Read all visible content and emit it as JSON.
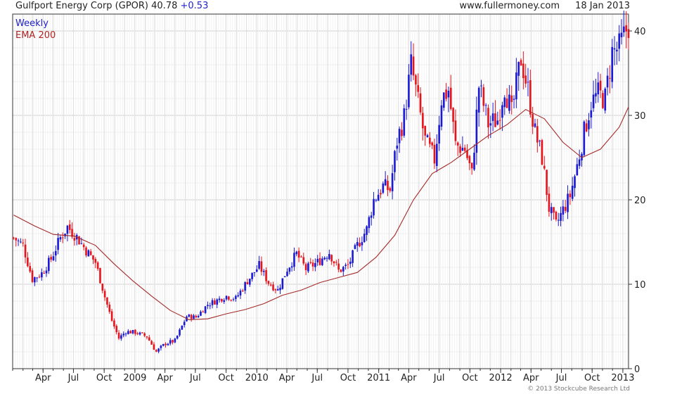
{
  "header": {
    "title": "Gulfport Energy Corp (GPOR) 40.78",
    "change": "+0.53",
    "site": "www.fullermoney.com",
    "date": "18 Jan 2013"
  },
  "legend": {
    "weekly": "Weekly",
    "ema": "EMA 200"
  },
  "copyright": "© 2013 Stockcube Research Ltd",
  "colors": {
    "up": "#1a1ad6",
    "down": "#e8141c",
    "ema": "#a52a2a",
    "grid": "#d9d9d9"
  },
  "chart_data": {
    "type": "candlestick",
    "ylim": [
      0,
      42
    ],
    "yticks": [
      0,
      10,
      20,
      30,
      40
    ],
    "grid": true,
    "x_start": "2008-01-01",
    "x_end": "2013-01-18",
    "xticks": [
      {
        "date": "2008-04-01",
        "label": "Apr"
      },
      {
        "date": "2008-07-01",
        "label": "Jul"
      },
      {
        "date": "2008-10-01",
        "label": "Oct"
      },
      {
        "date": "2009-01-01",
        "label": "2009"
      },
      {
        "date": "2009-04-01",
        "label": "Apr"
      },
      {
        "date": "2009-07-01",
        "label": "Jul"
      },
      {
        "date": "2009-10-01",
        "label": "Oct"
      },
      {
        "date": "2010-01-01",
        "label": "2010"
      },
      {
        "date": "2010-04-01",
        "label": "Apr"
      },
      {
        "date": "2010-07-01",
        "label": "Jul"
      },
      {
        "date": "2010-10-01",
        "label": "Oct"
      },
      {
        "date": "2011-01-01",
        "label": "2011"
      },
      {
        "date": "2011-04-01",
        "label": "Apr"
      },
      {
        "date": "2011-07-01",
        "label": "Jul"
      },
      {
        "date": "2011-10-01",
        "label": "Oct"
      },
      {
        "date": "2012-01-01",
        "label": "2012"
      },
      {
        "date": "2012-04-01",
        "label": "Apr"
      },
      {
        "date": "2012-07-01",
        "label": "Jul"
      },
      {
        "date": "2012-10-01",
        "label": "Oct"
      },
      {
        "date": "2013-01-01",
        "label": "2013"
      }
    ],
    "close_path": [
      [
        "2008-01-04",
        15.5
      ],
      [
        "2008-02-01",
        14.6
      ],
      [
        "2008-02-29",
        10.6
      ],
      [
        "2008-03-28",
        11.3
      ],
      [
        "2008-04-25",
        13.0
      ],
      [
        "2008-05-23",
        15.5
      ],
      [
        "2008-06-13",
        16.8
      ],
      [
        "2008-07-11",
        15.6
      ],
      [
        "2008-08-08",
        14.0
      ],
      [
        "2008-09-05",
        12.6
      ],
      [
        "2008-10-03",
        8.5
      ],
      [
        "2008-10-24",
        5.7
      ],
      [
        "2008-11-14",
        3.6
      ],
      [
        "2008-12-05",
        4.4
      ],
      [
        "2009-01-02",
        4.3
      ],
      [
        "2009-02-06",
        3.8
      ],
      [
        "2009-03-06",
        2.0
      ],
      [
        "2009-04-03",
        3.0
      ],
      [
        "2009-05-01",
        3.3
      ],
      [
        "2009-06-05",
        6.2
      ],
      [
        "2009-07-03",
        6.1
      ],
      [
        "2009-08-07",
        7.6
      ],
      [
        "2009-09-04",
        8.1
      ],
      [
        "2009-10-02",
        8.6
      ],
      [
        "2009-10-30",
        8.3
      ],
      [
        "2009-12-04",
        10.4
      ],
      [
        "2010-01-08",
        12.2
      ],
      [
        "2010-02-05",
        10.2
      ],
      [
        "2010-03-05",
        9.3
      ],
      [
        "2010-04-02",
        11.8
      ],
      [
        "2010-04-30",
        13.6
      ],
      [
        "2010-05-28",
        11.8
      ],
      [
        "2010-07-02",
        12.6
      ],
      [
        "2010-08-06",
        13.8
      ],
      [
        "2010-09-03",
        11.6
      ],
      [
        "2010-10-01",
        12.2
      ],
      [
        "2010-10-29",
        14.6
      ],
      [
        "2010-11-26",
        16.5
      ],
      [
        "2010-12-17",
        20.0
      ],
      [
        "2011-01-14",
        21.6
      ],
      [
        "2011-02-04",
        21.2
      ],
      [
        "2011-02-25",
        27.0
      ],
      [
        "2011-03-18",
        29.8
      ],
      [
        "2011-04-08",
        36.0
      ],
      [
        "2011-04-29",
        31.5
      ],
      [
        "2011-05-20",
        27.0
      ],
      [
        "2011-06-17",
        24.8
      ],
      [
        "2011-07-08",
        32.0
      ],
      [
        "2011-07-29",
        33.0
      ],
      [
        "2011-08-19",
        26.5
      ],
      [
        "2011-09-16",
        26.0
      ],
      [
        "2011-10-07",
        23.0
      ],
      [
        "2011-10-28",
        33.5
      ],
      [
        "2011-11-25",
        29.0
      ],
      [
        "2011-12-23",
        29.5
      ],
      [
        "2012-01-13",
        33.5
      ],
      [
        "2012-02-03",
        30.2
      ],
      [
        "2012-03-02",
        36.8
      ],
      [
        "2012-03-23",
        33.0
      ],
      [
        "2012-04-13",
        28.0
      ],
      [
        "2012-05-04",
        25.0
      ],
      [
        "2012-05-25",
        19.0
      ],
      [
        "2012-06-15",
        17.0
      ],
      [
        "2012-07-06",
        18.8
      ],
      [
        "2012-07-27",
        20.5
      ],
      [
        "2012-08-17",
        24.0
      ],
      [
        "2012-09-07",
        28.0
      ],
      [
        "2012-09-28",
        31.5
      ],
      [
        "2012-10-19",
        32.5
      ],
      [
        "2012-11-09",
        32.0
      ],
      [
        "2012-11-30",
        37.5
      ],
      [
        "2012-12-21",
        38.0
      ],
      [
        "2013-01-18",
        40.8
      ]
    ],
    "series": [
      {
        "name": "EMA 200",
        "type": "line",
        "points": [
          [
            "2008-01-04",
            18.2
          ],
          [
            "2008-03-07",
            16.9
          ],
          [
            "2008-05-02",
            15.9
          ],
          [
            "2008-07-04",
            15.7
          ],
          [
            "2008-09-05",
            14.6
          ],
          [
            "2008-10-31",
            12.4
          ],
          [
            "2008-12-26",
            10.4
          ],
          [
            "2009-02-20",
            8.6
          ],
          [
            "2009-04-17",
            6.9
          ],
          [
            "2009-06-12",
            5.8
          ],
          [
            "2009-08-07",
            5.9
          ],
          [
            "2009-10-02",
            6.5
          ],
          [
            "2009-11-27",
            7.0
          ],
          [
            "2010-01-22",
            7.7
          ],
          [
            "2010-03-19",
            8.7
          ],
          [
            "2010-05-14",
            9.3
          ],
          [
            "2010-07-09",
            10.2
          ],
          [
            "2010-09-03",
            10.8
          ],
          [
            "2010-10-29",
            11.4
          ],
          [
            "2010-12-24",
            13.2
          ],
          [
            "2011-02-18",
            15.8
          ],
          [
            "2011-04-15",
            20.0
          ],
          [
            "2011-06-10",
            23.1
          ],
          [
            "2011-08-05",
            24.4
          ],
          [
            "2011-09-30",
            26.0
          ],
          [
            "2011-11-25",
            27.6
          ],
          [
            "2012-01-20",
            28.9
          ],
          [
            "2012-03-16",
            30.7
          ],
          [
            "2012-05-11",
            29.6
          ],
          [
            "2012-07-06",
            26.8
          ],
          [
            "2012-08-31",
            25.0
          ],
          [
            "2012-10-26",
            26.0
          ],
          [
            "2012-12-21",
            28.6
          ],
          [
            "2013-01-18",
            31.0
          ]
        ]
      }
    ]
  }
}
